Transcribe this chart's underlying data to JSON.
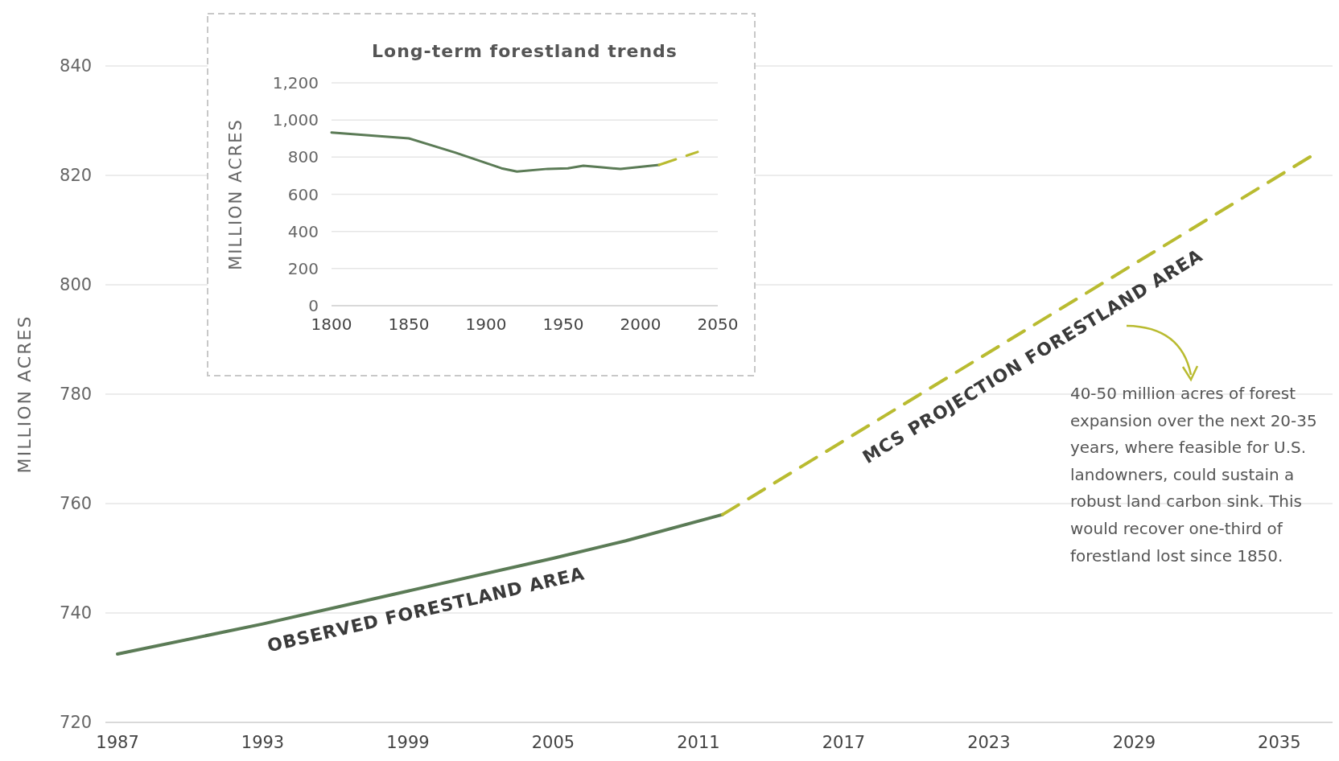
{
  "chart_data": [
    {
      "type": "line",
      "ylabel": "MILLION ACRES",
      "xlim": [
        1986.5,
        2037.2
      ],
      "xticks": [
        1987,
        1993,
        1999,
        2005,
        2011,
        2017,
        2023,
        2029,
        2035
      ],
      "ylim": [
        720,
        840
      ],
      "yticks": [
        720,
        740,
        760,
        780,
        800,
        820,
        840
      ],
      "grid": "y",
      "marker": "none",
      "series": [
        {
          "name": "OBSERVED FORESTLAND AREA",
          "color": "#5b7b56",
          "line_style": "solid",
          "x": [
            1987,
            1993,
            1999,
            2005,
            2008,
            2012
          ],
          "values": [
            732.5,
            738,
            744,
            750,
            753.2,
            758
          ]
        },
        {
          "name": "MCS PROJECTION FORESTLAND AREA",
          "color": "#b9bb30",
          "line_style": "dashed",
          "x": [
            2012,
            2036.5
          ],
          "values": [
            758,
            824
          ]
        }
      ],
      "annotations": [
        "40-50 million acres of forest expansion over the next 20-35 years, where feasible for U.S. landowners, could sustain a robust land carbon sink. This would recover one-third of forestland lost since 1850."
      ]
    },
    {
      "type": "line",
      "title": "Long-term forestland trends",
      "ylabel": "MILLION ACRES",
      "xlim": [
        1800,
        2050
      ],
      "xticks": [
        1800,
        1850,
        1900,
        1950,
        2000,
        2050
      ],
      "ylim": [
        0,
        1200
      ],
      "yticks": [
        0,
        200,
        400,
        600,
        800,
        {
          "value": 1000,
          "label": "1,000"
        },
        {
          "value": 1200,
          "label": "1,200"
        }
      ],
      "grid": "y",
      "marker": "none",
      "series": [
        {
          "color": "#5b7b56",
          "line_style": "solid",
          "x": [
            1800,
            1850,
            1880,
            1910,
            1920,
            1940,
            1953,
            1963,
            1975,
            1987,
            2012
          ],
          "values": [
            933,
            901,
            825,
            740,
            722,
            737,
            740,
            754,
            745,
            736,
            758
          ]
        },
        {
          "color": "#b9bb30",
          "line_style": "dashed",
          "x": [
            2012,
            2037
          ],
          "values": [
            758,
            828
          ]
        }
      ]
    }
  ]
}
